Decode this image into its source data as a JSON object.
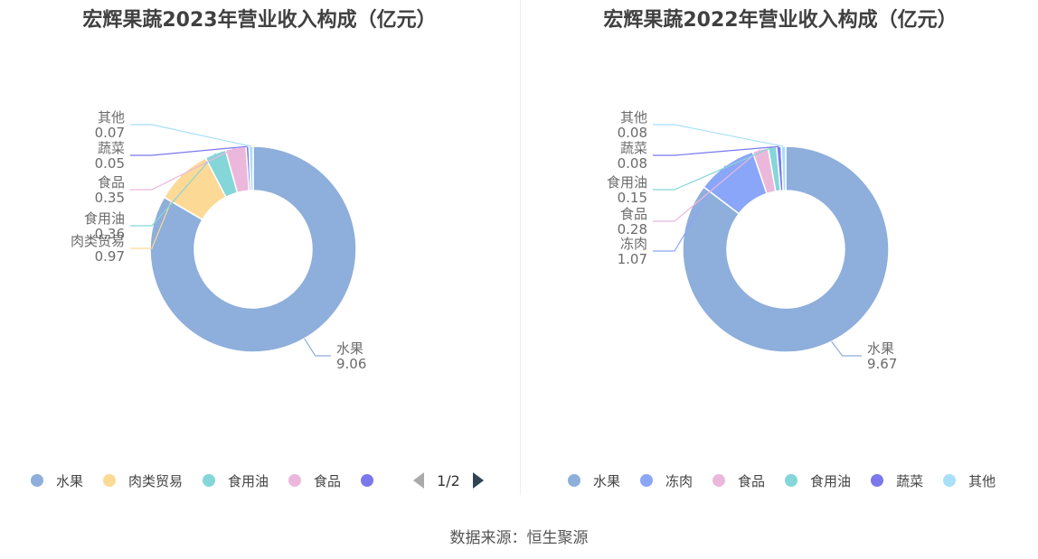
{
  "source": "数据来源：恒生聚源",
  "chart_data": [
    {
      "type": "pie",
      "title": "宏辉果蔬2023年营业收入构成（亿元）",
      "slices": [
        {
          "name": "水果",
          "value": 9.06,
          "color": "#8eaedb"
        },
        {
          "name": "肉类贸易",
          "value": 0.97,
          "color": "#fdd996"
        },
        {
          "name": "食用油",
          "value": 0.36,
          "color": "#84d6d9"
        },
        {
          "name": "食品",
          "value": 0.35,
          "color": "#ebb8dc"
        },
        {
          "name": "蔬菜",
          "value": 0.05,
          "color": "#7b78ec"
        },
        {
          "name": "其他",
          "value": 0.07,
          "color": "#a8dff9"
        }
      ],
      "legend": {
        "items": [
          "水果",
          "肉类贸易",
          "食用油",
          "食品",
          ""
        ],
        "page": "1/2"
      }
    },
    {
      "type": "pie",
      "title": "宏辉果蔬2022年营业收入构成（亿元）",
      "slices": [
        {
          "name": "水果",
          "value": 9.67,
          "color": "#8eaedb"
        },
        {
          "name": "冻肉",
          "value": 1.07,
          "color": "#8aa6f9"
        },
        {
          "name": "食品",
          "value": 0.28,
          "color": "#ebb8dc"
        },
        {
          "name": "食用油",
          "value": 0.15,
          "color": "#84d6d9"
        },
        {
          "name": "蔬菜",
          "value": 0.08,
          "color": "#7b78ec"
        },
        {
          "name": "其他",
          "value": 0.08,
          "color": "#a8dff9"
        }
      ],
      "legend": {
        "items": [
          "水果",
          "冻肉",
          "食品",
          "食用油",
          "蔬菜",
          "其他"
        ],
        "page": ""
      }
    }
  ]
}
